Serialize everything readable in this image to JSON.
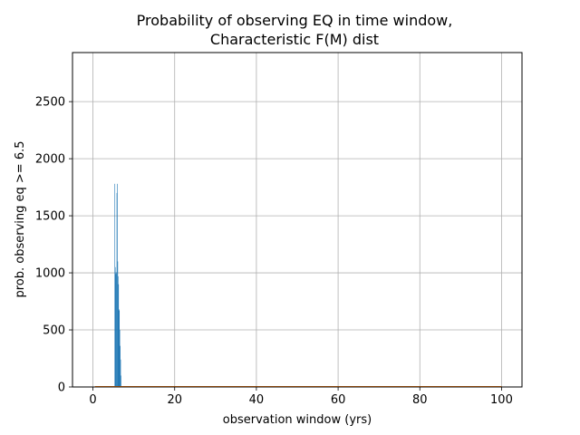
{
  "chart_data": {
    "type": "bar",
    "title_line1": "Probability of observing EQ in time window,",
    "title_line2": "Characteristic F(M) dist",
    "xlabel": "observation window (yrs)",
    "ylabel": "prob. observing eq >= 6.5",
    "xlim": [
      -5,
      105
    ],
    "ylim": [
      0,
      2930
    ],
    "xticks": [
      0,
      20,
      40,
      60,
      80,
      100
    ],
    "yticks": [
      0,
      500,
      1000,
      1500,
      2000,
      2500
    ],
    "grid": true,
    "bar_color": "#1f77b4",
    "line_color": "#ff7f0e",
    "bin_width": 0.1,
    "bins": [
      {
        "x": 5.3,
        "y": 1780
      },
      {
        "x": 5.4,
        "y": 1050
      },
      {
        "x": 5.5,
        "y": 990
      },
      {
        "x": 5.6,
        "y": 1005
      },
      {
        "x": 5.7,
        "y": 990
      },
      {
        "x": 5.8,
        "y": 1700
      },
      {
        "x": 5.9,
        "y": 1780
      },
      {
        "x": 6.0,
        "y": 1100
      },
      {
        "x": 6.1,
        "y": 970
      },
      {
        "x": 6.2,
        "y": 900
      },
      {
        "x": 6.3,
        "y": 680
      },
      {
        "x": 6.4,
        "y": 670
      },
      {
        "x": 6.5,
        "y": 500
      },
      {
        "x": 6.6,
        "y": 360
      },
      {
        "x": 6.7,
        "y": 240
      },
      {
        "x": 6.8,
        "y": 100
      }
    ],
    "line": {
      "x": [
        0.5,
        100
      ],
      "y": [
        2,
        2
      ]
    }
  }
}
